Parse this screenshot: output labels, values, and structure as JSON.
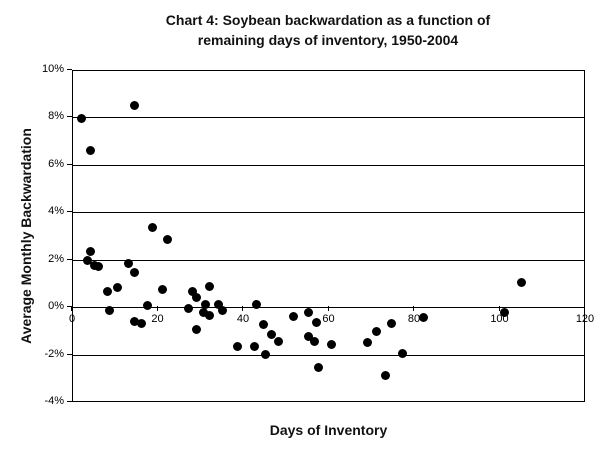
{
  "chart_data": {
    "type": "scatter",
    "title_line1": "Chart 4: Soybean backwardation as a function of",
    "title_line2": "remaining days of inventory, 1950-2004",
    "xlabel": "Days of Inventory",
    "ylabel": "Average Monthly Backwardation",
    "xlim": [
      0,
      120
    ],
    "ylim": [
      -4,
      10
    ],
    "x_ticks": [
      0,
      20,
      40,
      60,
      80,
      100,
      120
    ],
    "y_ticks": [
      {
        "value": 10,
        "label": "10%"
      },
      {
        "value": 8,
        "label": "8%"
      },
      {
        "value": 6,
        "label": "6%"
      },
      {
        "value": 4,
        "label": "4%"
      },
      {
        "value": 2,
        "label": "2%"
      },
      {
        "value": 0,
        "label": "0%"
      },
      {
        "value": -2,
        "label": "-2%"
      },
      {
        "value": -4,
        "label": "-4%"
      }
    ],
    "grid": "horizontal-only",
    "legend": "none",
    "marker": "filled-circle",
    "marker_color": "#000000",
    "background_color": "#ffffff",
    "points": [
      [
        2,
        8.0
      ],
      [
        4,
        6.65
      ],
      [
        14.5,
        8.55
      ],
      [
        3.5,
        2.0
      ],
      [
        4,
        2.4
      ],
      [
        5,
        1.8
      ],
      [
        6,
        1.75
      ],
      [
        8,
        0.7
      ],
      [
        8.5,
        -0.1
      ],
      [
        10.5,
        0.85
      ],
      [
        13,
        1.9
      ],
      [
        14.5,
        1.5
      ],
      [
        14.5,
        -0.55
      ],
      [
        16,
        -0.65
      ],
      [
        17.5,
        0.1
      ],
      [
        18.5,
        3.4
      ],
      [
        21,
        0.8
      ],
      [
        22,
        2.9
      ],
      [
        27,
        0.0
      ],
      [
        28,
        0.7
      ],
      [
        29,
        0.45
      ],
      [
        29,
        -0.9
      ],
      [
        30.5,
        -0.2
      ],
      [
        31,
        0.15
      ],
      [
        32,
        0.9
      ],
      [
        32,
        -0.3
      ],
      [
        34,
        0.15
      ],
      [
        35,
        -0.1
      ],
      [
        38.5,
        -1.6
      ],
      [
        42.5,
        -1.6
      ],
      [
        43,
        0.15
      ],
      [
        44.5,
        -0.7
      ],
      [
        45,
        -1.95
      ],
      [
        46.5,
        -1.1
      ],
      [
        48,
        -1.4
      ],
      [
        51.5,
        -0.35
      ],
      [
        55,
        -0.2
      ],
      [
        55,
        -1.2
      ],
      [
        56.5,
        -1.4
      ],
      [
        57,
        -0.6
      ],
      [
        57.5,
        -2.5
      ],
      [
        60.5,
        -1.55
      ],
      [
        69,
        -1.45
      ],
      [
        71,
        -1.0
      ],
      [
        73,
        -2.85
      ],
      [
        74.5,
        -0.65
      ],
      [
        77,
        -1.9
      ],
      [
        82,
        -0.4
      ],
      [
        101,
        -0.2
      ],
      [
        105,
        1.1
      ]
    ]
  }
}
